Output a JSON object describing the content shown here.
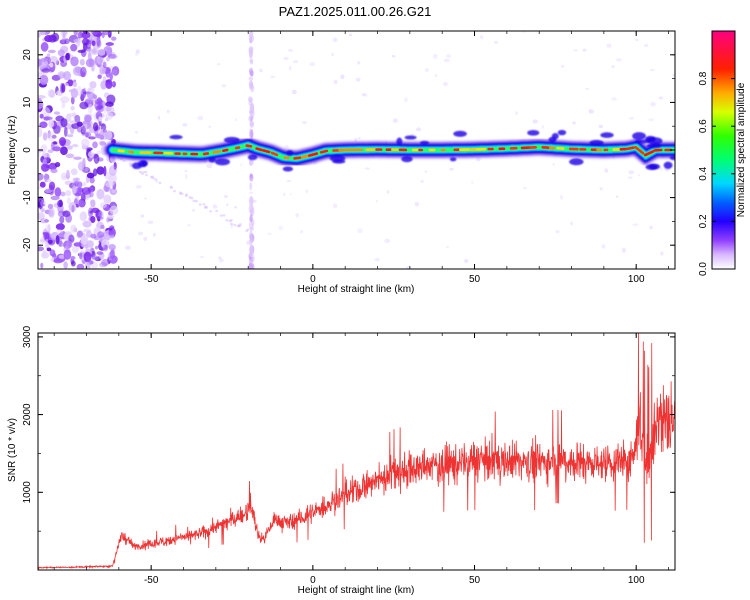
{
  "title": "PAZ1.2025.011.00.26.G21",
  "colors": {
    "snr_line": "#ee3333",
    "frame": "#000000"
  },
  "chart_data": [
    {
      "type": "heatmap",
      "xlabel": "Height of straight line (km)",
      "ylabel": "Frequency (Hz)",
      "xlim": [
        -85,
        112
      ],
      "ylim": [
        -25,
        25
      ],
      "xticks": [
        -50,
        0,
        50,
        100
      ],
      "yticks": [
        -20,
        -10,
        0,
        10,
        20
      ],
      "colorbar": {
        "label": "Normalized spectral amplitude",
        "range": [
          0,
          1
        ],
        "ticks": [
          "0.0",
          "0.2",
          "0.4",
          "0.6",
          "0.8"
        ],
        "colormap": [
          "#ffffff",
          "#b070ff",
          "#4400ff",
          "#0000ff",
          "#00c8ff",
          "#00ff80",
          "#40ff00",
          "#ffff00",
          "#ff9900",
          "#ff0000",
          "#ff0080"
        ]
      },
      "ridge": [
        [
          -62,
          0.0
        ],
        [
          -55,
          -0.5
        ],
        [
          -48,
          -0.6
        ],
        [
          -40,
          -0.8
        ],
        [
          -34,
          -0.9
        ],
        [
          -28,
          -0.2
        ],
        [
          -23,
          0.5
        ],
        [
          -20,
          1.0
        ],
        [
          -17,
          0.2
        ],
        [
          -13,
          -0.5
        ],
        [
          -9,
          -1.6
        ],
        [
          -5,
          -1.8
        ],
        [
          0,
          -1.0
        ],
        [
          4,
          -0.2
        ],
        [
          10,
          0.0
        ],
        [
          20,
          0.1
        ],
        [
          30,
          0.0
        ],
        [
          40,
          0.0
        ],
        [
          50,
          0.1
        ],
        [
          60,
          0.3
        ],
        [
          70,
          0.6
        ],
        [
          80,
          0.2
        ],
        [
          90,
          0.0
        ],
        [
          97,
          0.2
        ],
        [
          100,
          0.6
        ],
        [
          103,
          -1.2
        ],
        [
          106,
          0.0
        ],
        [
          112,
          0.0
        ]
      ]
    },
    {
      "type": "line",
      "xlabel": "Height of straight line (km)",
      "ylabel": "SNR (10 * v/v)",
      "xlim": [
        -85,
        112
      ],
      "ylim": [
        0,
        3050
      ],
      "xticks": [
        -50,
        0,
        50,
        100
      ],
      "yticks": [
        1000,
        2000,
        3000
      ],
      "trend": [
        [
          -85,
          30
        ],
        [
          -70,
          40
        ],
        [
          -62,
          50
        ],
        [
          -61,
          200
        ],
        [
          -59,
          450
        ],
        [
          -55,
          300
        ],
        [
          -50,
          330
        ],
        [
          -45,
          380
        ],
        [
          -40,
          420
        ],
        [
          -35,
          460
        ],
        [
          -30,
          560
        ],
        [
          -25,
          640
        ],
        [
          -21,
          720
        ],
        [
          -19,
          820
        ],
        [
          -17,
          450
        ],
        [
          -15,
          400
        ],
        [
          -12,
          650
        ],
        [
          -8,
          600
        ],
        [
          -4,
          660
        ],
        [
          0,
          730
        ],
        [
          5,
          850
        ],
        [
          10,
          960
        ],
        [
          15,
          1050
        ],
        [
          20,
          1150
        ],
        [
          25,
          1250
        ],
        [
          30,
          1290
        ],
        [
          35,
          1320
        ],
        [
          40,
          1360
        ],
        [
          45,
          1380
        ],
        [
          50,
          1400
        ],
        [
          55,
          1410
        ],
        [
          60,
          1400
        ],
        [
          65,
          1400
        ],
        [
          70,
          1400
        ],
        [
          75,
          1410
        ],
        [
          80,
          1400
        ],
        [
          85,
          1380
        ],
        [
          90,
          1380
        ],
        [
          95,
          1390
        ],
        [
          99,
          1420
        ],
        [
          100,
          1650
        ],
        [
          101,
          1900
        ],
        [
          102,
          1700
        ],
        [
          103,
          1400
        ],
        [
          104,
          1300
        ],
        [
          105,
          1700
        ],
        [
          106,
          1950
        ],
        [
          108,
          1920
        ],
        [
          110,
          1950
        ],
        [
          112,
          1930
        ]
      ]
    }
  ]
}
